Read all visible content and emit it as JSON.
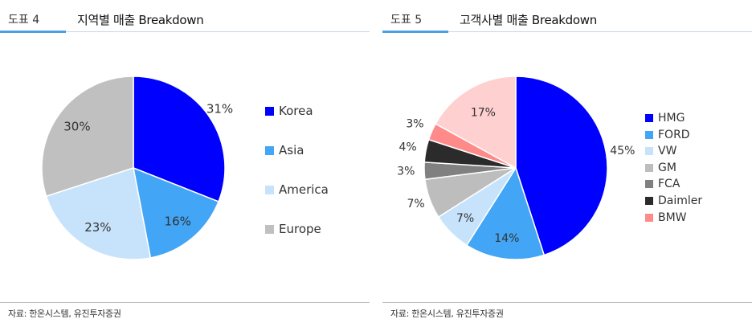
{
  "panels": [
    {
      "figure_label": "도표 4",
      "title": "지역별 매출 Breakdown",
      "source": "자료: 한온시스템, 유진투자증권"
    },
    {
      "figure_label": "도표 5",
      "title": "고객사별 매출 Breakdown",
      "source": "자료: 한온시스템, 유진투자증권"
    }
  ],
  "chart_data": [
    {
      "type": "pie",
      "title": "지역별 매출 Breakdown",
      "unit": "%",
      "legend_position": "right",
      "slices": [
        {
          "label": "Korea",
          "value": 31,
          "display": "31%",
          "color": "#0000ff"
        },
        {
          "label": "Asia",
          "value": 16,
          "display": "16%",
          "color": "#42a5f5"
        },
        {
          "label": "America",
          "value": 23,
          "display": "23%",
          "color": "#c6e3fb"
        },
        {
          "label": "Europe",
          "value": 30,
          "display": "30%",
          "color": "#c0c0c0"
        }
      ]
    },
    {
      "type": "pie",
      "title": "고객사별 매출 Breakdown",
      "unit": "%",
      "legend_position": "right",
      "slices": [
        {
          "label": "HMG",
          "value": 45,
          "display": "45%",
          "color": "#0000ff"
        },
        {
          "label": "FORD",
          "value": 14,
          "display": "14%",
          "color": "#42a5f5"
        },
        {
          "label": "VW",
          "value": 7,
          "display": "7%",
          "color": "#c6e3fb"
        },
        {
          "label": "GM",
          "value": 7,
          "display": "7%",
          "color": "#bdbdbd"
        },
        {
          "label": "FCA",
          "value": 3,
          "display": "3%",
          "color": "#808080"
        },
        {
          "label": "Daimler",
          "value": 4,
          "display": "4%",
          "color": "#2b2b2b"
        },
        {
          "label": "BMW",
          "value": 3,
          "display": "3%",
          "color": "#ff8a8a"
        },
        {
          "label": "",
          "value": 17,
          "display": "17%",
          "color": "#ffd0d0"
        }
      ]
    }
  ]
}
